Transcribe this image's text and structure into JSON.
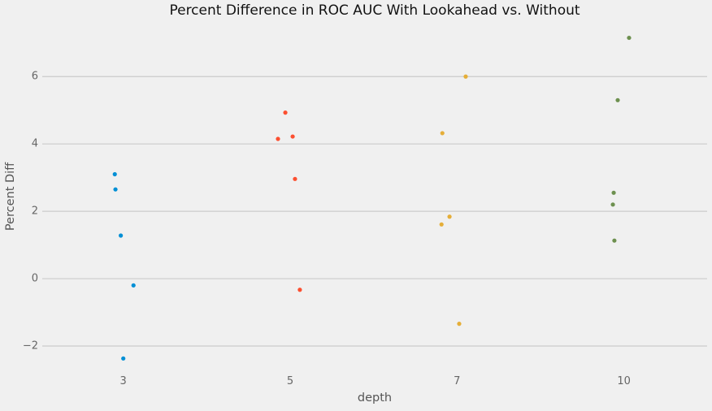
{
  "chart_data": {
    "type": "scatter",
    "subtype": "jittered-strip-plot",
    "title": "Percent Difference in ROC AUC With Lookahead vs. Without",
    "xlabel": "depth",
    "ylabel": "Percent Diff",
    "x_categories": [
      "3",
      "5",
      "7",
      "10"
    ],
    "y_ticks": [
      -2,
      0,
      2,
      4,
      6
    ],
    "y_tick_labels": [
      "−2",
      "0",
      "2",
      "4",
      "6"
    ],
    "ylim": [
      -2.7,
      7.55
    ],
    "grid": "horizontal-only",
    "legend": "none",
    "colors": {
      "background": "#f0f0f0",
      "gridline": "#cbcbcb",
      "title_text": "#121212",
      "axis_label_text": "#555555",
      "tick_label_text": "#666666"
    },
    "series": [
      {
        "name": "depth 3",
        "category_index": 0,
        "color": "#008fd5",
        "points": [
          {
            "dx": -0.051,
            "y": 3.1
          },
          {
            "dx": -0.047,
            "y": 2.65
          },
          {
            "dx": -0.015,
            "y": 1.28
          },
          {
            "dx": 0.061,
            "y": -0.2
          },
          {
            "dx": 0.0,
            "y": -2.37
          }
        ]
      },
      {
        "name": "depth 5",
        "category_index": 1,
        "color": "#fc4f30",
        "points": [
          {
            "dx": -0.029,
            "y": 4.93
          },
          {
            "dx": -0.073,
            "y": 4.15
          },
          {
            "dx": 0.015,
            "y": 4.22
          },
          {
            "dx": 0.029,
            "y": 2.96
          },
          {
            "dx": 0.058,
            "y": -0.33
          }
        ]
      },
      {
        "name": "depth 7",
        "category_index": 2,
        "color": "#e5ae38",
        "points": [
          {
            "dx": 0.052,
            "y": 6.0
          },
          {
            "dx": -0.088,
            "y": 4.32
          },
          {
            "dx": -0.045,
            "y": 1.84
          },
          {
            "dx": -0.093,
            "y": 1.61
          },
          {
            "dx": 0.013,
            "y": -1.34
          }
        ]
      },
      {
        "name": "depth 10",
        "category_index": 3,
        "color": "#6d904f",
        "points": [
          {
            "dx": 0.031,
            "y": 7.15
          },
          {
            "dx": -0.037,
            "y": 5.3
          },
          {
            "dx": -0.061,
            "y": 2.55
          },
          {
            "dx": -0.066,
            "y": 2.2
          },
          {
            "dx": -0.057,
            "y": 1.13
          }
        ]
      }
    ]
  }
}
